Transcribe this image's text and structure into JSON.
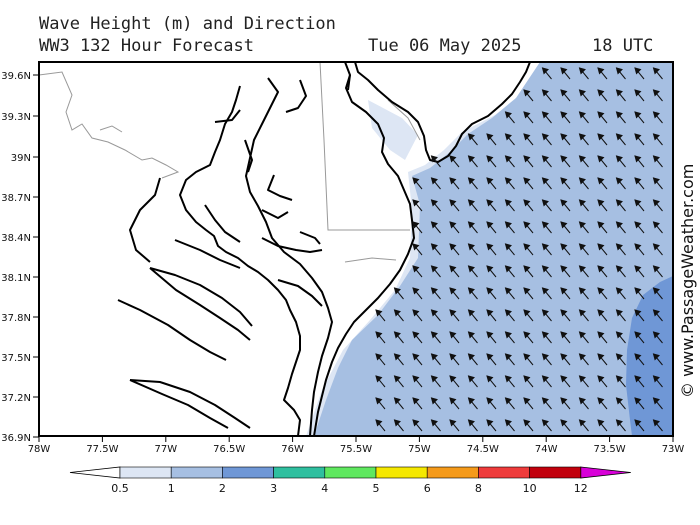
{
  "header": {
    "title": "Wave Height (m) and Direction",
    "model": "WW3 132 Hour Forecast",
    "date": "Tue 06 May 2025",
    "time": "18 UTC"
  },
  "credit": "© www.PassageWeather.com",
  "map": {
    "region": "Chesapeake Bay / Delmarva coast",
    "lat_labels": [
      "39.6N",
      "39.3N",
      "39N",
      "38.7N",
      "38.4N",
      "38.1N",
      "37.8N",
      "37.5N",
      "37.2N",
      "36.9N"
    ],
    "lon_labels": [
      "78W",
      "77.5W",
      "77W",
      "76.5W",
      "76W",
      "75.5W",
      "75W",
      "74.5W",
      "74W",
      "73.5W",
      "73W"
    ],
    "colors": {
      "land": "#ffffff",
      "coast": "#000000",
      "border": "#999999",
      "wave_0_5_1": "#dde6f4",
      "wave_1_2": "#a6bfe2",
      "wave_2_3": "#6f97d6",
      "arrow": "#111111"
    },
    "arrow_direction": "toward northwest"
  },
  "legend": {
    "labels": [
      "0.5",
      "1",
      "2",
      "3",
      "4",
      "5",
      "6",
      "8",
      "10",
      "12"
    ],
    "colors": [
      "#dde6f4",
      "#a6bfe2",
      "#6f97d6",
      "#2fbf9f",
      "#5fe85f",
      "#f5e800",
      "#f59a1a",
      "#ef3b3b",
      "#c2000d",
      "#d800d8"
    ]
  }
}
